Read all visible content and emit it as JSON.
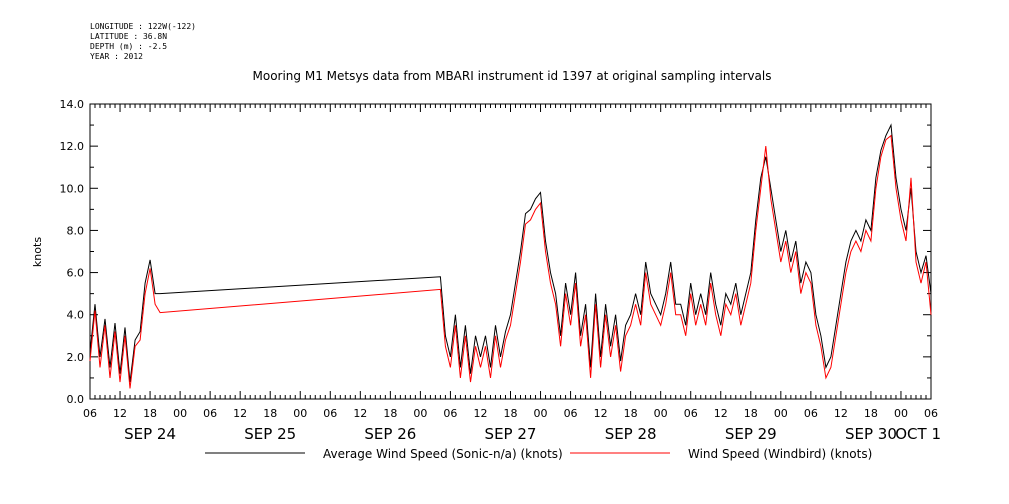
{
  "meta": {
    "longitude": "LONGITUDE : 122W(-122)",
    "latitude": "LATITUDE : 36.8N",
    "depth": "DEPTH (m) : -2.5",
    "year": "YEAR : 2012"
  },
  "chart_data": {
    "type": "line",
    "title": "Mooring M1 Metsys data from MBARI instrument id 1397 at original sampling intervals",
    "ylabel": "knots",
    "xlabel": "",
    "ylim": [
      0,
      14
    ],
    "y_ticks": [
      "0.0",
      "2.0",
      "4.0",
      "6.0",
      "8.0",
      "10.0",
      "12.0",
      "14.0"
    ],
    "x_range_hours": [
      0,
      168
    ],
    "x_hour_ticks": [
      "06",
      "12",
      "18",
      "00",
      "06",
      "12",
      "18",
      "00",
      "06",
      "12",
      "18",
      "00",
      "06",
      "12",
      "18",
      "00",
      "06",
      "12",
      "18",
      "00",
      "06",
      "12",
      "18",
      "00",
      "06",
      "12",
      "18",
      "00",
      "06"
    ],
    "x_day_labels": [
      "SEP 24",
      "SEP 25",
      "SEP 26",
      "SEP 27",
      "SEP 28",
      "SEP 29",
      "SEP 30",
      "OCT 1"
    ],
    "grid": false,
    "legend_position": "bottom",
    "series": [
      {
        "name": "Average Wind Speed (Sonic-n/a) (knots)",
        "color": "#000000",
        "points": [
          [
            "2012-09-24 06:00",
            2.2
          ],
          [
            "2012-09-24 07:00",
            4.5
          ],
          [
            "2012-09-24 08:00",
            2.0
          ],
          [
            "2012-09-24 09:00",
            3.8
          ],
          [
            "2012-09-24 10:00",
            1.5
          ],
          [
            "2012-09-24 11:00",
            3.6
          ],
          [
            "2012-09-24 12:00",
            1.2
          ],
          [
            "2012-09-24 13:00",
            3.4
          ],
          [
            "2012-09-24 14:00",
            0.8
          ],
          [
            "2012-09-24 15:00",
            2.8
          ],
          [
            "2012-09-24 16:00",
            3.2
          ],
          [
            "2012-09-24 17:00",
            5.5
          ],
          [
            "2012-09-24 18:00",
            6.6
          ],
          [
            "2012-09-24 19:00",
            5.0
          ],
          [
            "2012-09-24 20:00",
            5.0
          ],
          [
            "2012-09-27 04:00",
            5.8
          ],
          [
            "2012-09-27 05:00",
            3.0
          ],
          [
            "2012-09-27 06:00",
            2.0
          ],
          [
            "2012-09-27 07:00",
            4.0
          ],
          [
            "2012-09-27 08:00",
            1.5
          ],
          [
            "2012-09-27 09:00",
            3.5
          ],
          [
            "2012-09-27 10:00",
            1.2
          ],
          [
            "2012-09-27 11:00",
            3.0
          ],
          [
            "2012-09-27 12:00",
            2.0
          ],
          [
            "2012-09-27 13:00",
            3.0
          ],
          [
            "2012-09-27 14:00",
            1.5
          ],
          [
            "2012-09-27 15:00",
            3.5
          ],
          [
            "2012-09-27 16:00",
            2.0
          ],
          [
            "2012-09-27 17:00",
            3.2
          ],
          [
            "2012-09-27 18:00",
            4.0
          ],
          [
            "2012-09-27 19:00",
            5.5
          ],
          [
            "2012-09-27 20:00",
            7.0
          ],
          [
            "2012-09-27 21:00",
            8.8
          ],
          [
            "2012-09-27 22:00",
            9.0
          ],
          [
            "2012-09-27 23:00",
            9.5
          ],
          [
            "2012-09-28 00:00",
            9.8
          ],
          [
            "2012-09-28 01:00",
            7.5
          ],
          [
            "2012-09-28 02:00",
            6.0
          ],
          [
            "2012-09-28 03:00",
            5.0
          ],
          [
            "2012-09-28 04:00",
            3.0
          ],
          [
            "2012-09-28 05:00",
            5.5
          ],
          [
            "2012-09-28 06:00",
            4.0
          ],
          [
            "2012-09-28 07:00",
            6.0
          ],
          [
            "2012-09-28 08:00",
            3.0
          ],
          [
            "2012-09-28 09:00",
            4.5
          ],
          [
            "2012-09-28 10:00",
            1.5
          ],
          [
            "2012-09-28 11:00",
            5.0
          ],
          [
            "2012-09-28 12:00",
            2.0
          ],
          [
            "2012-09-28 13:00",
            4.5
          ],
          [
            "2012-09-28 14:00",
            2.5
          ],
          [
            "2012-09-28 15:00",
            4.0
          ],
          [
            "2012-09-28 16:00",
            1.8
          ],
          [
            "2012-09-28 17:00",
            3.5
          ],
          [
            "2012-09-28 18:00",
            4.0
          ],
          [
            "2012-09-28 19:00",
            5.0
          ],
          [
            "2012-09-28 20:00",
            4.0
          ],
          [
            "2012-09-28 21:00",
            6.5
          ],
          [
            "2012-09-28 22:00",
            5.0
          ],
          [
            "2012-09-28 23:00",
            4.5
          ],
          [
            "2012-09-29 00:00",
            4.0
          ],
          [
            "2012-09-29 01:00",
            5.0
          ],
          [
            "2012-09-29 02:00",
            6.5
          ],
          [
            "2012-09-29 03:00",
            4.5
          ],
          [
            "2012-09-29 04:00",
            4.5
          ],
          [
            "2012-09-29 05:00",
            3.5
          ],
          [
            "2012-09-29 06:00",
            5.5
          ],
          [
            "2012-09-29 07:00",
            4.0
          ],
          [
            "2012-09-29 08:00",
            5.0
          ],
          [
            "2012-09-29 09:00",
            4.0
          ],
          [
            "2012-09-29 10:00",
            6.0
          ],
          [
            "2012-09-29 11:00",
            4.5
          ],
          [
            "2012-09-29 12:00",
            3.5
          ],
          [
            "2012-09-29 13:00",
            5.0
          ],
          [
            "2012-09-29 14:00",
            4.5
          ],
          [
            "2012-09-29 15:00",
            5.5
          ],
          [
            "2012-09-29 16:00",
            4.0
          ],
          [
            "2012-09-29 17:00",
            5.0
          ],
          [
            "2012-09-29 18:00",
            6.0
          ],
          [
            "2012-09-29 19:00",
            8.5
          ],
          [
            "2012-09-29 20:00",
            10.5
          ],
          [
            "2012-09-29 21:00",
            11.5
          ],
          [
            "2012-09-29 22:00",
            10.0
          ],
          [
            "2012-09-29 23:00",
            8.5
          ],
          [
            "2012-09-30 00:00",
            7.0
          ],
          [
            "2012-09-30 01:00",
            8.0
          ],
          [
            "2012-09-30 02:00",
            6.5
          ],
          [
            "2012-09-30 03:00",
            7.5
          ],
          [
            "2012-09-30 04:00",
            5.5
          ],
          [
            "2012-09-30 05:00",
            6.5
          ],
          [
            "2012-09-30 06:00",
            6.0
          ],
          [
            "2012-09-30 07:00",
            4.0
          ],
          [
            "2012-09-30 08:00",
            3.0
          ],
          [
            "2012-09-30 09:00",
            1.5
          ],
          [
            "2012-09-30 10:00",
            2.0
          ],
          [
            "2012-09-30 11:00",
            3.5
          ],
          [
            "2012-09-30 12:00",
            5.0
          ],
          [
            "2012-09-30 13:00",
            6.5
          ],
          [
            "2012-09-30 14:00",
            7.5
          ],
          [
            "2012-09-30 15:00",
            8.0
          ],
          [
            "2012-09-30 16:00",
            7.5
          ],
          [
            "2012-09-30 17:00",
            8.5
          ],
          [
            "2012-09-30 18:00",
            8.0
          ],
          [
            "2012-09-30 19:00",
            10.5
          ],
          [
            "2012-09-30 20:00",
            11.8
          ],
          [
            "2012-09-30 21:00",
            12.5
          ],
          [
            "2012-09-30 22:00",
            13.0
          ],
          [
            "2012-09-30 23:00",
            10.5
          ],
          [
            "2012-10-01 00:00",
            9.0
          ],
          [
            "2012-10-01 01:00",
            8.0
          ],
          [
            "2012-10-01 02:00",
            10.0
          ],
          [
            "2012-10-01 03:00",
            7.0
          ],
          [
            "2012-10-01 04:00",
            6.0
          ],
          [
            "2012-10-01 05:00",
            6.8
          ],
          [
            "2012-10-01 06:00",
            5.0
          ]
        ]
      },
      {
        "name": "Wind Speed (Windbird) (knots)",
        "color": "#ff0000",
        "points": [
          [
            "2012-09-24 06:00",
            1.8
          ],
          [
            "2012-09-24 07:00",
            4.2
          ],
          [
            "2012-09-24 08:00",
            1.5
          ],
          [
            "2012-09-24 09:00",
            3.5
          ],
          [
            "2012-09-24 10:00",
            1.0
          ],
          [
            "2012-09-24 11:00",
            3.2
          ],
          [
            "2012-09-24 12:00",
            0.8
          ],
          [
            "2012-09-24 13:00",
            3.0
          ],
          [
            "2012-09-24 14:00",
            0.5
          ],
          [
            "2012-09-24 15:00",
            2.5
          ],
          [
            "2012-09-24 16:00",
            2.8
          ],
          [
            "2012-09-24 17:00",
            5.0
          ],
          [
            "2012-09-24 18:00",
            6.2
          ],
          [
            "2012-09-24 19:00",
            4.5
          ],
          [
            "2012-09-24 20:00",
            4.1
          ],
          [
            "2012-09-27 04:00",
            5.2
          ],
          [
            "2012-09-27 05:00",
            2.5
          ],
          [
            "2012-09-27 06:00",
            1.5
          ],
          [
            "2012-09-27 07:00",
            3.5
          ],
          [
            "2012-09-27 08:00",
            1.0
          ],
          [
            "2012-09-27 09:00",
            3.0
          ],
          [
            "2012-09-27 10:00",
            0.8
          ],
          [
            "2012-09-27 11:00",
            2.5
          ],
          [
            "2012-09-27 12:00",
            1.5
          ],
          [
            "2012-09-27 13:00",
            2.5
          ],
          [
            "2012-09-27 14:00",
            1.0
          ],
          [
            "2012-09-27 15:00",
            3.0
          ],
          [
            "2012-09-27 16:00",
            1.5
          ],
          [
            "2012-09-27 17:00",
            2.8
          ],
          [
            "2012-09-27 18:00",
            3.5
          ],
          [
            "2012-09-27 19:00",
            5.0
          ],
          [
            "2012-09-27 20:00",
            6.5
          ],
          [
            "2012-09-27 21:00",
            8.3
          ],
          [
            "2012-09-27 22:00",
            8.5
          ],
          [
            "2012-09-27 23:00",
            9.0
          ],
          [
            "2012-09-28 00:00",
            9.3
          ],
          [
            "2012-09-28 01:00",
            7.0
          ],
          [
            "2012-09-28 02:00",
            5.5
          ],
          [
            "2012-09-28 03:00",
            4.5
          ],
          [
            "2012-09-28 04:00",
            2.5
          ],
          [
            "2012-09-28 05:00",
            5.0
          ],
          [
            "2012-09-28 06:00",
            3.5
          ],
          [
            "2012-09-28 07:00",
            5.5
          ],
          [
            "2012-09-28 08:00",
            2.5
          ],
          [
            "2012-09-28 09:00",
            4.0
          ],
          [
            "2012-09-28 10:00",
            1.0
          ],
          [
            "2012-09-28 11:00",
            4.5
          ],
          [
            "2012-09-28 12:00",
            1.5
          ],
          [
            "2012-09-28 13:00",
            4.0
          ],
          [
            "2012-09-28 14:00",
            2.0
          ],
          [
            "2012-09-28 15:00",
            3.5
          ],
          [
            "2012-09-28 16:00",
            1.3
          ],
          [
            "2012-09-28 17:00",
            3.0
          ],
          [
            "2012-09-28 18:00",
            3.5
          ],
          [
            "2012-09-28 19:00",
            4.5
          ],
          [
            "2012-09-28 20:00",
            3.5
          ],
          [
            "2012-09-28 21:00",
            6.0
          ],
          [
            "2012-09-28 22:00",
            4.5
          ],
          [
            "2012-09-28 23:00",
            4.0
          ],
          [
            "2012-09-29 00:00",
            3.5
          ],
          [
            "2012-09-29 01:00",
            4.5
          ],
          [
            "2012-09-29 02:00",
            6.0
          ],
          [
            "2012-09-29 03:00",
            4.0
          ],
          [
            "2012-09-29 04:00",
            4.0
          ],
          [
            "2012-09-29 05:00",
            3.0
          ],
          [
            "2012-09-29 06:00",
            5.0
          ],
          [
            "2012-09-29 07:00",
            3.5
          ],
          [
            "2012-09-29 08:00",
            4.5
          ],
          [
            "2012-09-29 09:00",
            3.5
          ],
          [
            "2012-09-29 10:00",
            5.5
          ],
          [
            "2012-09-29 11:00",
            4.0
          ],
          [
            "2012-09-29 12:00",
            3.0
          ],
          [
            "2012-09-29 13:00",
            4.5
          ],
          [
            "2012-09-29 14:00",
            4.0
          ],
          [
            "2012-09-29 15:00",
            5.0
          ],
          [
            "2012-09-29 16:00",
            3.5
          ],
          [
            "2012-09-29 17:00",
            4.5
          ],
          [
            "2012-09-29 18:00",
            5.5
          ],
          [
            "2012-09-29 19:00",
            8.0
          ],
          [
            "2012-09-29 20:00",
            10.0
          ],
          [
            "2012-09-29 21:00",
            12.0
          ],
          [
            "2012-09-29 22:00",
            9.5
          ],
          [
            "2012-09-29 23:00",
            8.0
          ],
          [
            "2012-09-30 00:00",
            6.5
          ],
          [
            "2012-09-30 01:00",
            7.5
          ],
          [
            "2012-09-30 02:00",
            6.0
          ],
          [
            "2012-09-30 03:00",
            7.0
          ],
          [
            "2012-09-30 04:00",
            5.0
          ],
          [
            "2012-09-30 05:00",
            6.0
          ],
          [
            "2012-09-30 06:00",
            5.5
          ],
          [
            "2012-09-30 07:00",
            3.5
          ],
          [
            "2012-09-30 08:00",
            2.5
          ],
          [
            "2012-09-30 09:00",
            1.0
          ],
          [
            "2012-09-30 10:00",
            1.5
          ],
          [
            "2012-09-30 11:00",
            3.0
          ],
          [
            "2012-09-30 12:00",
            4.5
          ],
          [
            "2012-09-30 13:00",
            6.0
          ],
          [
            "2012-09-30 14:00",
            7.0
          ],
          [
            "2012-09-30 15:00",
            7.5
          ],
          [
            "2012-09-30 16:00",
            7.0
          ],
          [
            "2012-09-30 17:00",
            8.0
          ],
          [
            "2012-09-30 18:00",
            7.5
          ],
          [
            "2012-09-30 19:00",
            10.0
          ],
          [
            "2012-09-30 20:00",
            11.5
          ],
          [
            "2012-09-30 21:00",
            12.3
          ],
          [
            "2012-09-30 22:00",
            12.5
          ],
          [
            "2012-09-30 23:00",
            10.0
          ],
          [
            "2012-10-01 00:00",
            8.5
          ],
          [
            "2012-10-01 01:00",
            7.5
          ],
          [
            "2012-10-01 02:00",
            10.5
          ],
          [
            "2012-10-01 03:00",
            6.5
          ],
          [
            "2012-10-01 04:00",
            5.5
          ],
          [
            "2012-10-01 05:00",
            6.5
          ],
          [
            "2012-10-01 06:00",
            4.0
          ]
        ]
      }
    ]
  }
}
